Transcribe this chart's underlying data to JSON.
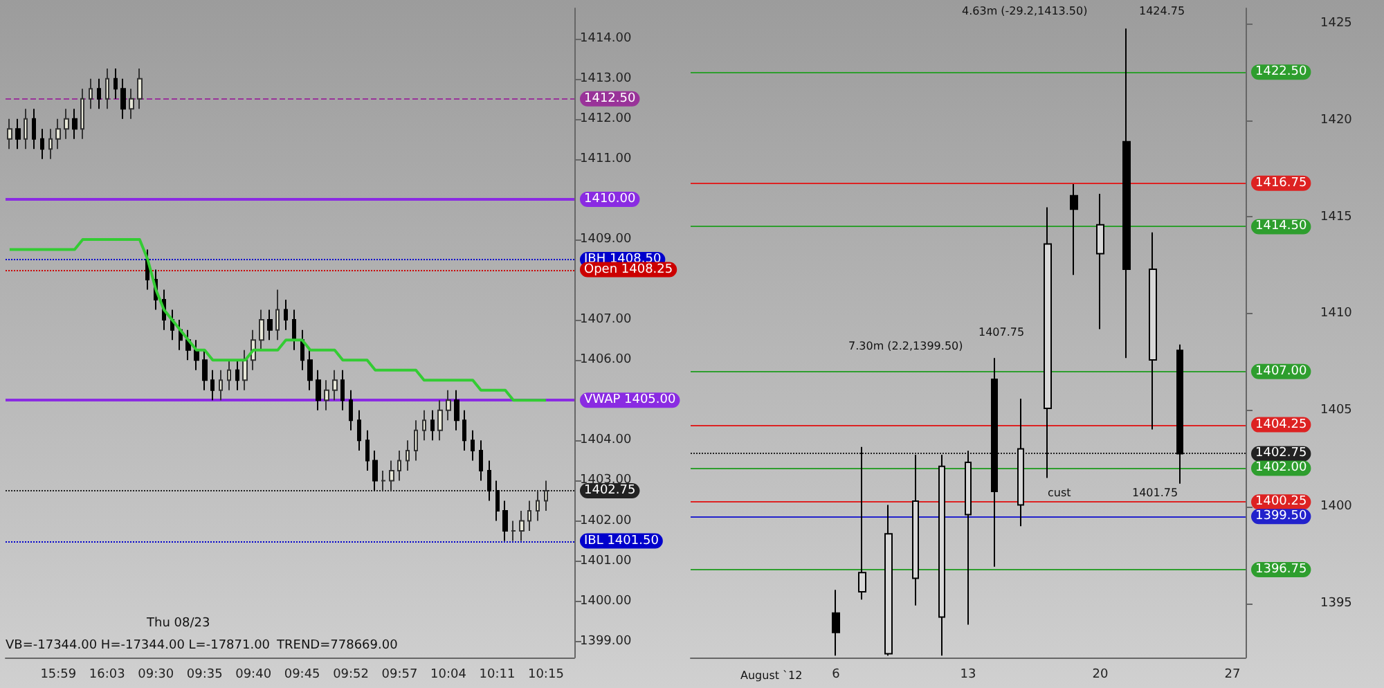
{
  "chart_data": [
    {
      "type": "candlestick",
      "categories": [
        null,
        null,
        null,
        null,
        null,
        null,
        "15:59",
        null,
        null,
        null,
        null,
        null,
        "16:03",
        null,
        null,
        null,
        null,
        null,
        "09:30",
        null,
        null,
        null,
        null,
        null,
        "09:35",
        null,
        null,
        null,
        null,
        null,
        "09:40",
        null,
        null,
        null,
        null,
        null,
        "09:45",
        null,
        null,
        null,
        null,
        null,
        "09:52",
        null,
        null,
        null,
        null,
        null,
        "09:57",
        null,
        null,
        null,
        null,
        null,
        "10:04",
        null,
        null,
        null,
        null,
        null,
        "10:11",
        null,
        null,
        null,
        null,
        null,
        "10:15",
        null,
        null,
        null
      ],
      "ohlc": [
        [
          1411.5,
          1412,
          1411.25,
          1411.75
        ],
        [
          1411.75,
          1412,
          1411.25,
          1411.5
        ],
        [
          1411.5,
          1412.25,
          1411.25,
          1412
        ],
        [
          1412,
          1412.25,
          1411.25,
          1411.5
        ],
        [
          1411.5,
          1411.75,
          1411,
          1411.25
        ],
        [
          1411.25,
          1411.75,
          1411,
          1411.5
        ],
        [
          1411.5,
          1412,
          1411.25,
          1411.75
        ],
        [
          1411.75,
          1412.25,
          1411.5,
          1412
        ],
        [
          1412,
          1412.25,
          1411.5,
          1411.75
        ],
        [
          1411.75,
          1412.75,
          1411.5,
          1412.5
        ],
        [
          1412.5,
          1413,
          1412.25,
          1412.75
        ],
        [
          1412.75,
          1413,
          1412.25,
          1412.5
        ],
        [
          1412.5,
          1413.25,
          1412.25,
          1413
        ],
        [
          1413,
          1413.25,
          1412.5,
          1412.75
        ],
        [
          1412.75,
          1413,
          1412,
          1412.25
        ],
        [
          1412.25,
          1412.75,
          1412,
          1412.5
        ],
        [
          1412.5,
          1413.25,
          1412.25,
          1413
        ],
        [
          1408.5,
          1408.75,
          1407.75,
          1408
        ],
        [
          1408,
          1408.25,
          1407.25,
          1407.5
        ],
        [
          1407.5,
          1407.75,
          1406.75,
          1407
        ],
        [
          1407,
          1407.25,
          1406.5,
          1406.75
        ],
        [
          1406.75,
          1407,
          1406.25,
          1406.5
        ],
        [
          1406.5,
          1406.75,
          1406,
          1406.25
        ],
        [
          1406.25,
          1406.5,
          1405.75,
          1406
        ],
        [
          1406,
          1406.25,
          1405.25,
          1405.5
        ],
        [
          1405.5,
          1405.75,
          1405,
          1405.25
        ],
        [
          1405.25,
          1405.75,
          1405,
          1405.5
        ],
        [
          1405.5,
          1406,
          1405.25,
          1405.75
        ],
        [
          1405.75,
          1406,
          1405.25,
          1405.5
        ],
        [
          1405.5,
          1406.25,
          1405.25,
          1406
        ],
        [
          1406,
          1406.75,
          1405.75,
          1406.5
        ],
        [
          1406.5,
          1407.25,
          1406.25,
          1407
        ],
        [
          1407,
          1407.25,
          1406.5,
          1406.75
        ],
        [
          1406.75,
          1407.75,
          1406.5,
          1407.25
        ],
        [
          1407.25,
          1407.5,
          1406.75,
          1407
        ],
        [
          1407,
          1407.25,
          1406.25,
          1406.5
        ],
        [
          1406.5,
          1406.75,
          1405.75,
          1406
        ],
        [
          1406,
          1406.25,
          1405.25,
          1405.5
        ],
        [
          1405.5,
          1405.75,
          1404.75,
          1405
        ],
        [
          1405,
          1405.5,
          1404.75,
          1405.25
        ],
        [
          1405.25,
          1405.75,
          1405,
          1405.5
        ],
        [
          1405.5,
          1405.75,
          1404.75,
          1405
        ],
        [
          1405,
          1405.25,
          1404.25,
          1404.5
        ],
        [
          1404.5,
          1404.75,
          1403.75,
          1404
        ],
        [
          1404,
          1404.25,
          1403.25,
          1403.5
        ],
        [
          1403.5,
          1403.75,
          1402.75,
          1403
        ],
        [
          1403,
          1403.25,
          1402.75,
          1403
        ],
        [
          1403,
          1403.5,
          1402.75,
          1403.25
        ],
        [
          1403.25,
          1403.75,
          1403,
          1403.5
        ],
        [
          1403.5,
          1404,
          1403.25,
          1403.75
        ],
        [
          1403.75,
          1404.5,
          1403.5,
          1404.25
        ],
        [
          1404.25,
          1404.75,
          1404,
          1404.5
        ],
        [
          1404.5,
          1404.75,
          1404,
          1404.25
        ],
        [
          1404.25,
          1405,
          1404,
          1404.75
        ],
        [
          1404.75,
          1405.25,
          1404.5,
          1405
        ],
        [
          1405,
          1405.25,
          1404.25,
          1404.5
        ],
        [
          1404.5,
          1404.75,
          1403.75,
          1404
        ],
        [
          1404,
          1404.25,
          1403.5,
          1403.75
        ],
        [
          1403.75,
          1404,
          1403,
          1403.25
        ],
        [
          1403.25,
          1403.5,
          1402.5,
          1402.75
        ],
        [
          1402.75,
          1403,
          1402,
          1402.25
        ],
        [
          1402.25,
          1402.5,
          1401.5,
          1401.75
        ],
        [
          1401.75,
          1402,
          1401.5,
          1401.75
        ],
        [
          1401.75,
          1402.25,
          1401.5,
          1402
        ],
        [
          1402,
          1402.5,
          1401.75,
          1402.25
        ],
        [
          1402.25,
          1402.75,
          1402,
          1402.5
        ],
        [
          1402.5,
          1403,
          1402.25,
          1402.75
        ],
        null,
        null,
        null
      ],
      "series": [
        {
          "type": "line",
          "color": "#33cc33",
          "values": [
            1408.75,
            1408.75,
            1408.75,
            1408.75,
            1408.75,
            1408.75,
            1408.75,
            1408.75,
            1408.75,
            1409,
            1409,
            1409,
            1409,
            1409,
            1409,
            1409,
            1409,
            1408.5,
            1407.75,
            1407.25,
            1407,
            1406.75,
            1406.5,
            1406.25,
            1406.25,
            1406,
            1406,
            1406,
            1406,
            1406,
            1406.25,
            1406.25,
            1406.25,
            1406.25,
            1406.5,
            1406.5,
            1406.5,
            1406.25,
            1406.25,
            1406.25,
            1406.25,
            1406,
            1406,
            1406,
            1406,
            1405.75,
            1405.75,
            1405.75,
            1405.75,
            1405.75,
            1405.75,
            1405.5,
            1405.5,
            1405.5,
            1405.5,
            1405.5,
            1405.5,
            1405.5,
            1405.25,
            1405.25,
            1405.25,
            1405.25,
            1405,
            1405,
            1405,
            1405,
            1405,
            null,
            null,
            null
          ]
        }
      ],
      "ylim": [
        1398.6,
        1414.75
      ],
      "yticks": [
        {
          "value": 1399,
          "label": "1399.00"
        },
        {
          "value": 1400,
          "label": "1400.00"
        },
        {
          "value": 1401,
          "label": "1401.00"
        },
        {
          "value": 1402,
          "label": "1402.00"
        },
        {
          "value": 1403,
          "label": "1403.00"
        },
        {
          "value": 1404,
          "label": "1404.00"
        },
        {
          "value": 1406,
          "label": "1406.00"
        },
        {
          "value": 1407,
          "label": "1407.00"
        },
        {
          "value": 1409,
          "label": "1409.00"
        },
        {
          "value": 1411,
          "label": "1411.00"
        },
        {
          "value": 1412,
          "label": "1412.00"
        },
        {
          "value": 1413,
          "label": "1413.00"
        },
        {
          "value": 1414,
          "label": "1414.00"
        }
      ],
      "ref_lines": [
        {
          "axis": "y",
          "value": 1412.5,
          "label": "1412.50",
          "color": "#993399",
          "line_style": "dashed"
        },
        {
          "axis": "y",
          "value": 1410,
          "label": "1410.00",
          "color": "#8a2be2",
          "line_style": "solid"
        },
        {
          "axis": "y",
          "value": 1408.5,
          "label": "IBH 1408.50",
          "color": "#0000cc",
          "line_style": "dotted"
        },
        {
          "axis": "y",
          "value": 1408.25,
          "label": "Open 1408.25",
          "color": "#cc0000",
          "line_style": "dotted"
        },
        {
          "axis": "y",
          "value": 1405,
          "label": "VWAP 1405.00",
          "color": "#8a2be2",
          "line_style": "solid"
        },
        {
          "axis": "y",
          "value": 1402.75,
          "label": "1402.75",
          "color": "#222222",
          "line_style": "dotted"
        },
        {
          "axis": "y",
          "value": 1401.5,
          "label": "IBL 1401.50",
          "color": "#0000cc",
          "line_style": "dotted"
        }
      ],
      "annotations": [
        "Thu 08/23",
        "VB=-17344.00 H=-17344.00 L=-17871.00",
        "TREND=778669.00"
      ],
      "grid": false
    },
    {
      "type": "candlestick",
      "categories": [
        null,
        null,
        null,
        null,
        null,
        "6",
        null,
        null,
        null,
        null,
        "13",
        null,
        null,
        null,
        null,
        "20",
        null,
        null,
        null,
        null,
        "27"
      ],
      "ohlc": [
        null,
        null,
        null,
        null,
        null,
        [
          1394.5,
          1395.7,
          1392.3,
          1393.5
        ],
        [
          1395.6,
          1403.1,
          1395.2,
          1396.6
        ],
        [
          1392.4,
          1400.1,
          1392.3,
          1398.6
        ],
        [
          1396.3,
          1402.7,
          1394.9,
          1400.3
        ],
        [
          1394.3,
          1402.7,
          1392.3,
          1402.1
        ],
        [
          1399.6,
          1402.9,
          1393.9,
          1402.3
        ],
        [
          1406.6,
          1407.7,
          1396.9,
          1400.8
        ],
        [
          1400.1,
          1405.6,
          1399,
          1403
        ],
        [
          1405.1,
          1415.5,
          1401.5,
          1413.6
        ],
        [
          1416.1,
          1416.7,
          1412,
          1415.4
        ],
        [
          1413.1,
          1416.2,
          1409.2,
          1414.6
        ],
        [
          1418.9,
          1424.75,
          1407.7,
          1412.3
        ],
        [
          1407.6,
          1414.2,
          1404,
          1412.3
        ],
        [
          1408.1,
          1408.4,
          1401.2,
          1402.75
        ],
        null,
        null
      ],
      "ylim": [
        1392.2,
        1425.8
      ],
      "yticks": [
        1395,
        1400,
        1405,
        1410,
        1415,
        1420,
        1425
      ],
      "ref_lines": [
        {
          "axis": "y",
          "value": 1422.5,
          "label": "1422.50",
          "color": "#2e9e2e",
          "line_style": "solid"
        },
        {
          "axis": "y",
          "value": 1416.75,
          "label": "1416.75",
          "color": "#dd2222",
          "line_style": "solid"
        },
        {
          "axis": "y",
          "value": 1414.5,
          "label": "1414.50",
          "color": "#2e9e2e",
          "line_style": "solid"
        },
        {
          "axis": "y",
          "value": 1407,
          "label": "1407.00",
          "color": "#2e9e2e",
          "line_style": "solid"
        },
        {
          "axis": "y",
          "value": 1404.25,
          "label": "1404.25",
          "color": "#dd2222",
          "line_style": "solid"
        },
        {
          "axis": "y",
          "value": 1402.75,
          "label": "1402.75",
          "color": "#222222",
          "line_style": "dotted"
        },
        {
          "axis": "y",
          "value": 1402,
          "label": "1402.00",
          "color": "#2e9e2e",
          "line_style": "solid"
        },
        {
          "axis": "y",
          "value": 1400.25,
          "label": "1400.25",
          "color": "#dd2222",
          "line_style": "solid"
        },
        {
          "axis": "y",
          "value": 1399.5,
          "label": "1399.50",
          "color": "#2222cc",
          "line_style": "solid"
        },
        {
          "axis": "y",
          "value": 1396.75,
          "label": "1396.75",
          "color": "#2e9e2e",
          "line_style": "solid"
        }
      ],
      "annotations": [
        "August `12",
        "7.30m (2.2,1399.50)",
        "4.63m (-29.2,1413.50)",
        "1424.75",
        "1407.75",
        "cust",
        "1401.75"
      ],
      "grid": false
    }
  ]
}
